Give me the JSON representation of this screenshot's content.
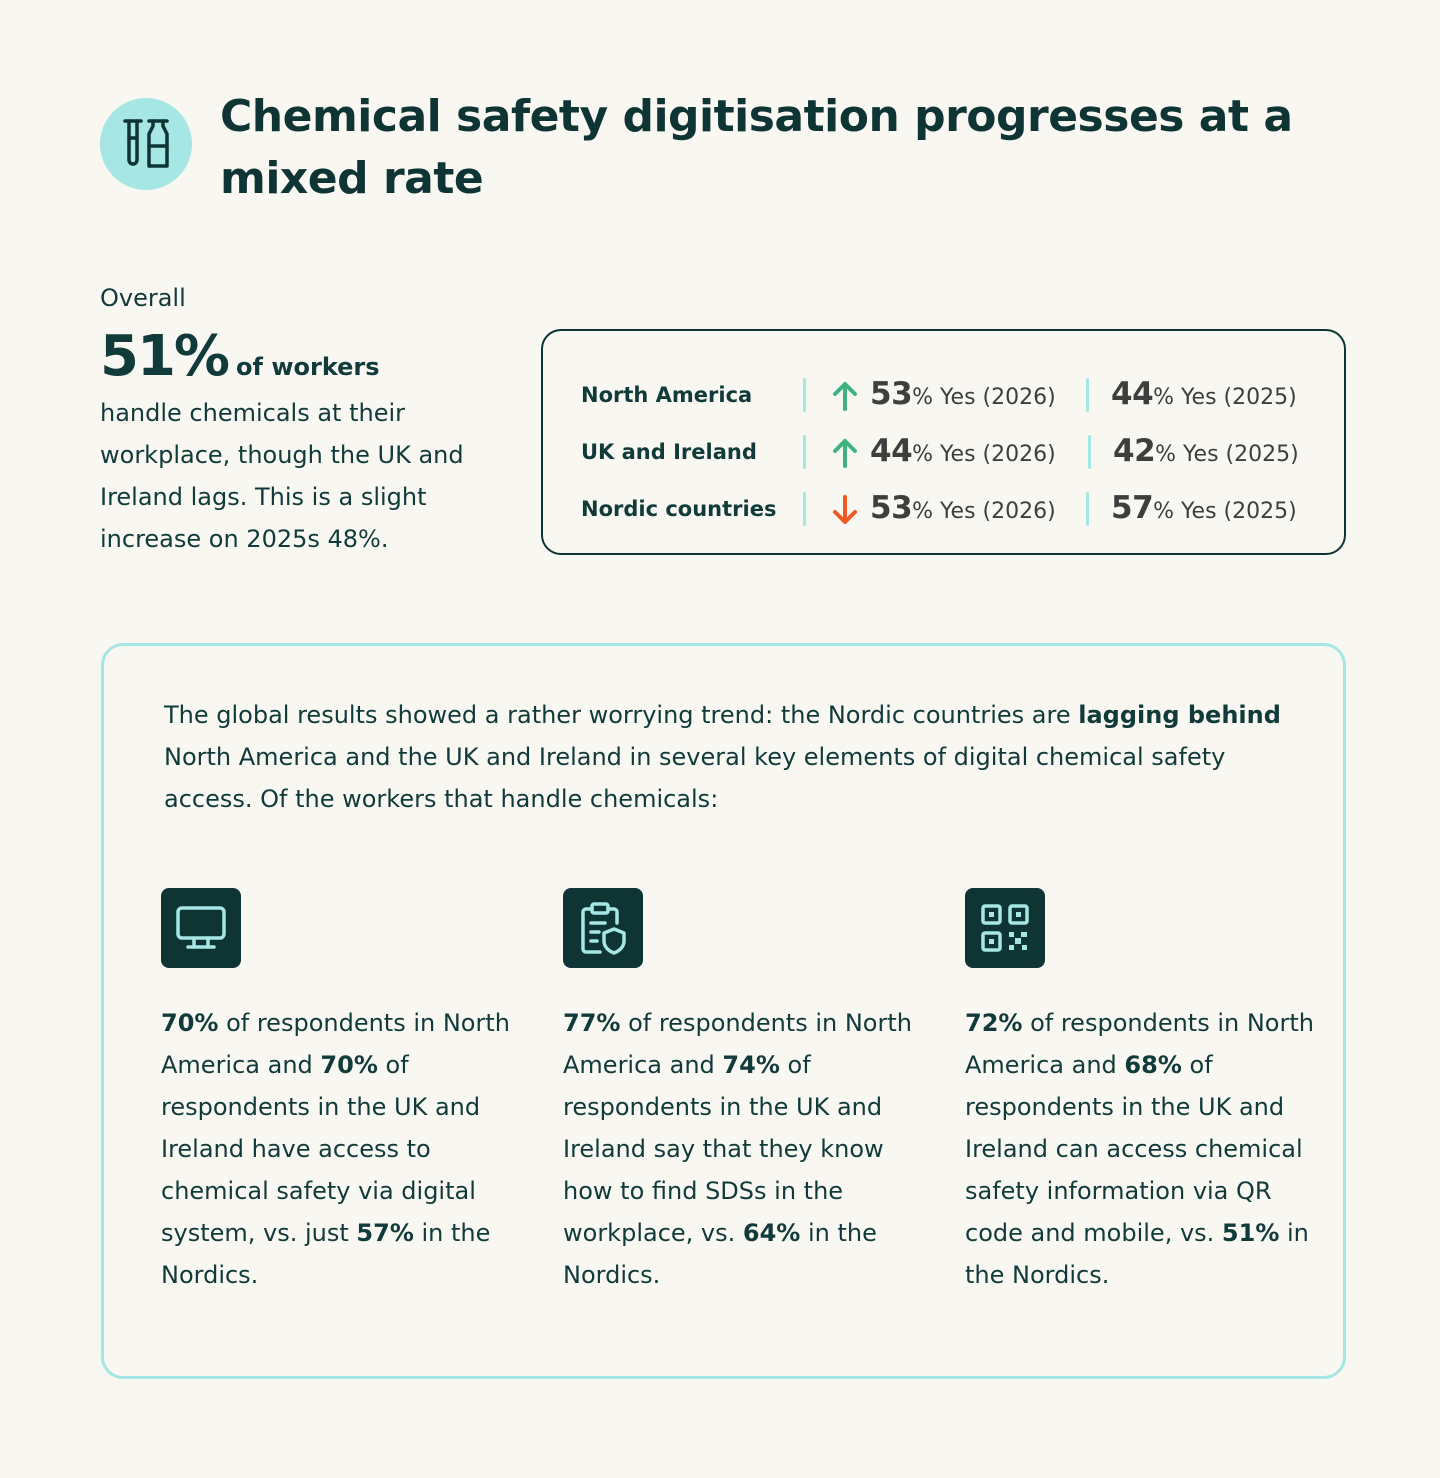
{
  "title": "Chemical safety digitisation progresses at a mixed rate",
  "icons": {
    "title": "test-tubes-icon",
    "up": "arrow-up-icon",
    "down": "arrow-down-icon",
    "card1": "monitor-icon",
    "card2": "clipboard-shield-icon",
    "card3": "qr-code-icon"
  },
  "colors": {
    "up": "#3fb37f",
    "down": "#f15a22",
    "accent": "#a6e6e4",
    "dark": "#0e3434"
  },
  "overall": {
    "label": "Overall",
    "big": "51%",
    "sub": "of workers",
    "desc": "handle chemicals at their workplace, though the UK and Ireland lags. This is a slight increase on 2025s 48%."
  },
  "stats": [
    {
      "region": "North America",
      "trend": "up",
      "v2026": "53",
      "l2026": "% Yes (2026)",
      "v2025": "44",
      "l2025": "% Yes (2025)"
    },
    {
      "region": "UK and Ireland",
      "trend": "up",
      "v2026": "44",
      "l2026": "% Yes (2026)",
      "v2025": "42",
      "l2025": "% Yes (2025)"
    },
    {
      "region": "Nordic countries",
      "trend": "down",
      "v2026": "53",
      "l2026": "% Yes (2026)",
      "v2025": "57",
      "l2025": "% Yes (2025)"
    }
  ],
  "intro": {
    "before": "The global results showed a rather worrying trend: the Nordic countries are ",
    "bold": "lagging behind",
    "after": " North America and the UK and Ireland in several key elements of digital chemical safety access. Of the workers that handle chemicals:"
  },
  "cards": [
    {
      "p1": "70%",
      "t1": " of respondents in North America and ",
      "p2": "70%",
      "t2": " of respondents in the UK and Ireland have access to chemical safety via digital system, vs. just ",
      "p3": "57%",
      "t3": " in the Nordics."
    },
    {
      "p1": "77%",
      "t1": " of respondents in North America and ",
      "p2": "74%",
      "t2": " of respondents in the UK and Ireland say that they know how to find SDSs in the workplace, vs. ",
      "p3": "64%",
      "t3": " in the Nordics."
    },
    {
      "p1": "72%",
      "t1": " of respondents in North America and ",
      "p2": "68%",
      "t2": " of respondents in the UK and Ireland can access chemical safety information via QR code and mobile, vs. ",
      "p3": "51%",
      "t3": " in the Nordics."
    }
  ]
}
